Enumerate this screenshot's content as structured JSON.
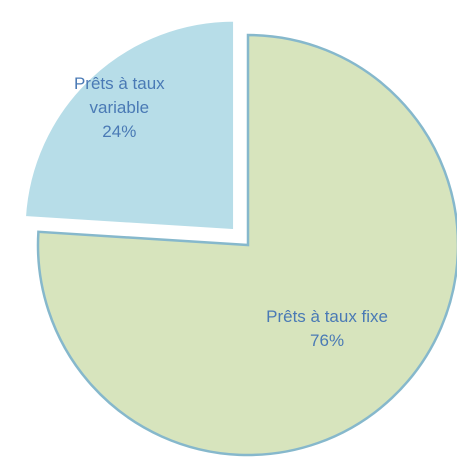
{
  "chart_data": {
    "type": "pie",
    "categories": [
      "Prêts à taux fixe",
      "Prêts à taux variable"
    ],
    "values": [
      76,
      24
    ],
    "value_labels": [
      "76%",
      "24%"
    ],
    "colors": [
      "#d7e4bd",
      "#b7dde8"
    ]
  }
}
